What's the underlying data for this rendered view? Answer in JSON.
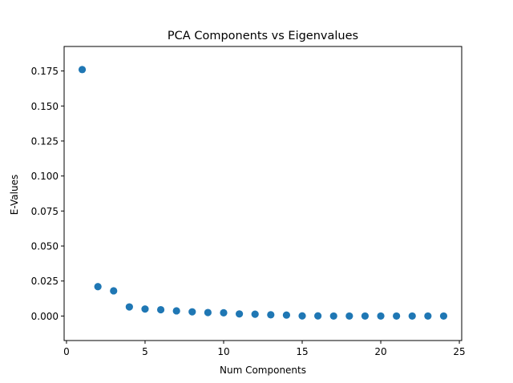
{
  "chart_data": {
    "type": "scatter",
    "title": "PCA Components vs Eigenvalues",
    "xlabel": "Num Components",
    "ylabel": "E-Values",
    "xlim": [
      -0.15,
      25.15
    ],
    "ylim": [
      -0.0175,
      0.1925
    ],
    "xticks": [
      0,
      5,
      10,
      15,
      20,
      25
    ],
    "yticks": [
      0.0,
      0.025,
      0.05,
      0.075,
      0.1,
      0.125,
      0.15,
      0.175
    ],
    "ytick_labels": [
      "0.000",
      "0.025",
      "0.050",
      "0.075",
      "0.100",
      "0.125",
      "0.150",
      "0.175"
    ],
    "grid": false,
    "legend": "none",
    "marker_color": "#1f77b4",
    "points": [
      {
        "x": 1,
        "y": 0.176
      },
      {
        "x": 2,
        "y": 0.021
      },
      {
        "x": 3,
        "y": 0.018
      },
      {
        "x": 4,
        "y": 0.0065
      },
      {
        "x": 5,
        "y": 0.005
      },
      {
        "x": 6,
        "y": 0.0045
      },
      {
        "x": 7,
        "y": 0.0037
      },
      {
        "x": 8,
        "y": 0.003
      },
      {
        "x": 9,
        "y": 0.0025
      },
      {
        "x": 10,
        "y": 0.0023
      },
      {
        "x": 11,
        "y": 0.0015
      },
      {
        "x": 12,
        "y": 0.0013
      },
      {
        "x": 13,
        "y": 0.0009
      },
      {
        "x": 14,
        "y": 0.0007
      },
      {
        "x": 15,
        "y": 0.0001
      },
      {
        "x": 16,
        "y": 0.0001
      },
      {
        "x": 17,
        "y": 0.0
      },
      {
        "x": 18,
        "y": 0.0
      },
      {
        "x": 19,
        "y": 0.0
      },
      {
        "x": 20,
        "y": 0.0
      },
      {
        "x": 21,
        "y": 0.0
      },
      {
        "x": 22,
        "y": 0.0
      },
      {
        "x": 23,
        "y": 0.0
      },
      {
        "x": 24,
        "y": 0.0
      }
    ]
  }
}
